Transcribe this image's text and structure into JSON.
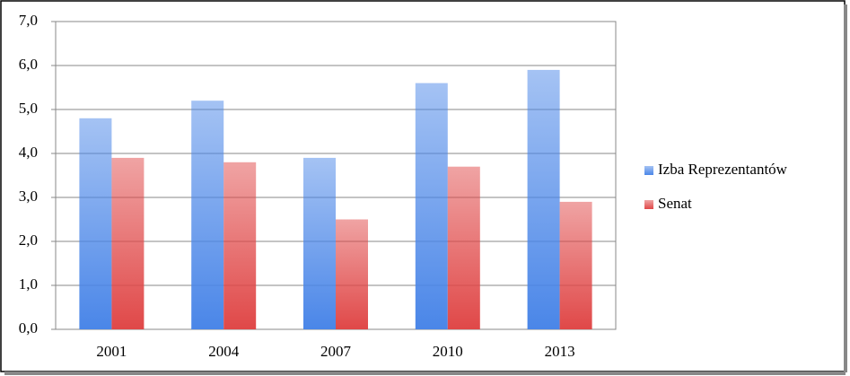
{
  "chart_data": {
    "type": "bar",
    "categories": [
      "2001",
      "2004",
      "2007",
      "2010",
      "2013"
    ],
    "series": [
      {
        "name": "Izba Reprezentantów",
        "color": "#4a86e8",
        "values": [
          4.8,
          5.2,
          3.9,
          5.6,
          5.9
        ]
      },
      {
        "name": "Senat",
        "color": "#e04848",
        "values": [
          3.9,
          3.8,
          2.5,
          3.7,
          2.9
        ]
      }
    ],
    "ylim": [
      0,
      7
    ],
    "yticks": [
      {
        "value": 0,
        "label": "0,0"
      },
      {
        "value": 1,
        "label": "1,0"
      },
      {
        "value": 2,
        "label": "2,0"
      },
      {
        "value": 3,
        "label": "3,0"
      },
      {
        "value": 4,
        "label": "4,0"
      },
      {
        "value": 5,
        "label": "5,0"
      },
      {
        "value": 6,
        "label": "6,0"
      },
      {
        "value": 7,
        "label": "7,0"
      }
    ],
    "grid": true,
    "legend": "right"
  }
}
